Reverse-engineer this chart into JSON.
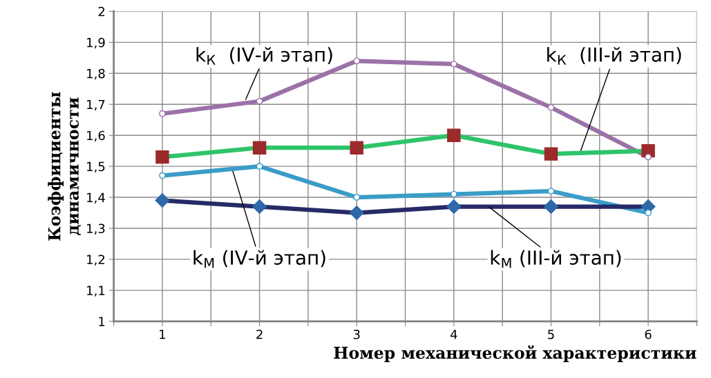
{
  "chart_data": {
    "type": "line",
    "xlabel": "Номер механической характеристики",
    "ylabel": "Коэффициенты\nдинамичности",
    "x": [
      1,
      2,
      3,
      4,
      5,
      6
    ],
    "xlim": [
      0.5,
      6.5
    ],
    "xticks": [
      {
        "value": 0.5,
        "label": null
      },
      1,
      {
        "value": 1.5,
        "label": null
      },
      2,
      {
        "value": 2.5,
        "label": null
      },
      3,
      {
        "value": 3.5,
        "label": null
      },
      4,
      {
        "value": 4.5,
        "label": null
      },
      5,
      {
        "value": 5.5,
        "label": null
      },
      6,
      {
        "value": 6.5,
        "label": null
      }
    ],
    "ylim": [
      1,
      2
    ],
    "yticks": [
      1,
      {
        "value": 1.1,
        "label": "1,1"
      },
      {
        "value": 1.2,
        "label": "1,2"
      },
      {
        "value": 1.3,
        "label": "1,3"
      },
      {
        "value": 1.4,
        "label": "1,4"
      },
      {
        "value": 1.5,
        "label": "1,5"
      },
      {
        "value": 1.6,
        "label": "1,6"
      },
      {
        "value": 1.7,
        "label": "1,7"
      },
      {
        "value": 1.8,
        "label": "1,8"
      },
      {
        "value": 1.9,
        "label": "1,9"
      },
      2
    ],
    "grid": true,
    "legend": false,
    "line_style": "solid",
    "series": [
      {
        "name": "k$_{К}$  (IV-й этап)",
        "color": "#9b72a8",
        "marker": "circle",
        "values": [
          1.67,
          1.71,
          1.84,
          1.83,
          1.69,
          1.53
        ]
      },
      {
        "name": "k$_{К}$  (III-й этап)",
        "color": "#2ec46a",
        "marker": "square",
        "colors": [
          "#9c2a2a",
          "#9c2a2a",
          "#9c2a2a",
          "#9c2a2a",
          "#9c2a2a",
          "#9c2a2a"
        ],
        "values": [
          1.53,
          1.56,
          1.56,
          1.6,
          1.54,
          1.55
        ]
      },
      {
        "name": "k$_{М}$ (IV-й этап)",
        "color": "#3a9cc8",
        "marker": "circle",
        "values": [
          1.47,
          1.5,
          1.4,
          1.41,
          1.42,
          1.35
        ]
      },
      {
        "name": "k$_{М}$ (III-й этап)",
        "color": "#262a66",
        "marker": "diamond",
        "colors": [
          "#2e68a8",
          "#2e68a8",
          "#2e68a8",
          "#2e68a8",
          "#2e68a8",
          "#2e68a8"
        ],
        "values": [
          1.39,
          1.37,
          1.35,
          1.37,
          1.37,
          1.37
        ]
      }
    ]
  }
}
